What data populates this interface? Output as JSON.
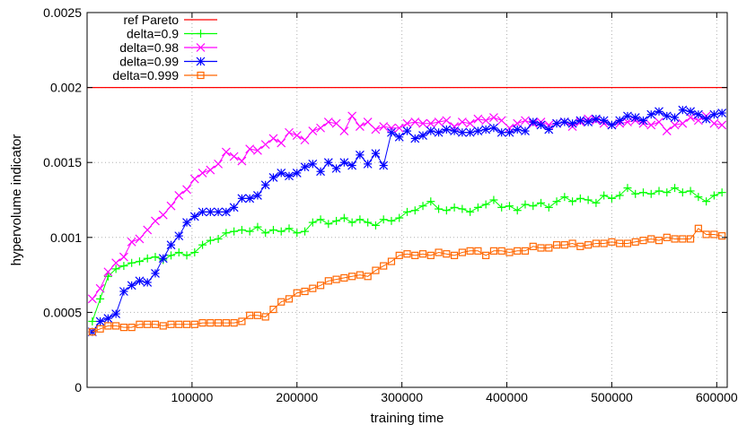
{
  "chart_data": {
    "type": "line",
    "xlabel": "training time",
    "ylabel": "hypervolume indicator",
    "xlim": [
      0,
      610000
    ],
    "ylim": [
      0,
      0.0025
    ],
    "grid": true,
    "legend_position": "top-left",
    "x_ticks": [
      100000,
      200000,
      300000,
      400000,
      500000,
      600000
    ],
    "x_tick_labels": [
      "100000",
      "200000",
      "300000",
      "400000",
      "500000",
      "600000"
    ],
    "y_ticks": [
      0,
      0.0005,
      0.001,
      0.0015,
      0.002,
      0.0025
    ],
    "y_tick_labels": [
      "0",
      "0.0005",
      "0.001",
      "0.0015",
      "0.002",
      "0.0025"
    ],
    "x": [
      5000,
      12500,
      20000,
      27500,
      35000,
      42500,
      50000,
      57500,
      65000,
      72500,
      80000,
      87500,
      95000,
      102500,
      110000,
      117500,
      125000,
      132500,
      140000,
      147500,
      155000,
      162500,
      170000,
      177500,
      185000,
      192500,
      200000,
      207500,
      215000,
      222500,
      230000,
      237500,
      245000,
      252500,
      260000,
      267500,
      275000,
      282500,
      290000,
      297500,
      305000,
      312500,
      320000,
      327500,
      335000,
      342500,
      350000,
      357500,
      365000,
      372500,
      380000,
      387500,
      395000,
      402500,
      410000,
      417500,
      425000,
      432500,
      440000,
      447500,
      455000,
      462500,
      470000,
      477500,
      485000,
      492500,
      500000,
      507500,
      515000,
      522500,
      530000,
      537500,
      545000,
      552500,
      560000,
      567500,
      575000,
      582500,
      590000,
      597500,
      605000
    ],
    "reference": {
      "name": "ref Pareto",
      "value": 0.002,
      "color": "#ff0000"
    },
    "series": [
      {
        "name": "delta=0.9",
        "color": "#00ff00",
        "marker": "plus",
        "values": [
          0.00044,
          0.00059,
          0.00074,
          0.00079,
          0.00081,
          0.00083,
          0.00084,
          0.00086,
          0.00087,
          0.00085,
          0.00088,
          0.0009,
          0.00088,
          0.0009,
          0.00095,
          0.00098,
          0.00099,
          0.00103,
          0.00104,
          0.00105,
          0.00104,
          0.00107,
          0.00103,
          0.00105,
          0.00104,
          0.00106,
          0.00103,
          0.00104,
          0.0011,
          0.00112,
          0.00109,
          0.00111,
          0.00113,
          0.0011,
          0.00112,
          0.0011,
          0.00108,
          0.00112,
          0.00111,
          0.00113,
          0.00117,
          0.00118,
          0.00121,
          0.00124,
          0.00119,
          0.00118,
          0.0012,
          0.00119,
          0.00117,
          0.0012,
          0.00122,
          0.00125,
          0.0012,
          0.00121,
          0.00118,
          0.00122,
          0.00121,
          0.00123,
          0.0012,
          0.00124,
          0.00127,
          0.00124,
          0.00126,
          0.00125,
          0.00123,
          0.00128,
          0.00126,
          0.00128,
          0.00133,
          0.00129,
          0.0013,
          0.00129,
          0.00131,
          0.0013,
          0.00133,
          0.0013,
          0.00131,
          0.00127,
          0.00124,
          0.00128,
          0.0013
        ]
      },
      {
        "name": "delta=0.98",
        "color": "#ff00ff",
        "marker": "cross",
        "values": [
          0.00059,
          0.00066,
          0.00077,
          0.00083,
          0.00087,
          0.00097,
          0.00099,
          0.00105,
          0.00111,
          0.00115,
          0.00121,
          0.00128,
          0.00132,
          0.00139,
          0.00143,
          0.00145,
          0.00149,
          0.00157,
          0.00154,
          0.00151,
          0.00159,
          0.00158,
          0.00162,
          0.00166,
          0.00163,
          0.0017,
          0.00168,
          0.00165,
          0.00171,
          0.00173,
          0.00177,
          0.00176,
          0.00171,
          0.00181,
          0.00174,
          0.00177,
          0.00172,
          0.00174,
          0.00173,
          0.00173,
          0.00176,
          0.00177,
          0.00176,
          0.00176,
          0.00177,
          0.00178,
          0.00174,
          0.00177,
          0.00176,
          0.00179,
          0.00178,
          0.0018,
          0.00178,
          0.00173,
          0.00176,
          0.00178,
          0.00176,
          0.00177,
          0.00175,
          0.00176,
          0.00177,
          0.00174,
          0.00177,
          0.00179,
          0.00178,
          0.00176,
          0.00175,
          0.00176,
          0.00177,
          0.00178,
          0.00176,
          0.00175,
          0.00177,
          0.00171,
          0.00175,
          0.00176,
          0.0018,
          0.00178,
          0.00181,
          0.00176,
          0.00175
        ]
      },
      {
        "name": "delta=0.99",
        "color": "#0000ff",
        "marker": "star",
        "values": [
          0.00037,
          0.00044,
          0.00046,
          0.00049,
          0.00064,
          0.00068,
          0.00071,
          0.0007,
          0.00076,
          0.00086,
          0.00095,
          0.00101,
          0.0011,
          0.00114,
          0.00117,
          0.00117,
          0.00117,
          0.00117,
          0.0012,
          0.00126,
          0.00126,
          0.00128,
          0.00135,
          0.0014,
          0.00143,
          0.00141,
          0.00143,
          0.00147,
          0.00149,
          0.00144,
          0.0015,
          0.00146,
          0.0015,
          0.00148,
          0.00155,
          0.00149,
          0.00156,
          0.00148,
          0.0017,
          0.00167,
          0.00171,
          0.00166,
          0.00168,
          0.00171,
          0.0017,
          0.00172,
          0.00171,
          0.0017,
          0.0017,
          0.00171,
          0.00172,
          0.00173,
          0.0017,
          0.0017,
          0.00172,
          0.00171,
          0.00177,
          0.00175,
          0.00172,
          0.00176,
          0.00177,
          0.00176,
          0.00178,
          0.00177,
          0.00179,
          0.00178,
          0.00175,
          0.00178,
          0.00181,
          0.0018,
          0.00178,
          0.00182,
          0.00184,
          0.00181,
          0.0018,
          0.00185,
          0.00184,
          0.00182,
          0.00179,
          0.00182,
          0.00183
        ]
      },
      {
        "name": "delta=0.999",
        "color": "#ff6600",
        "marker": "square",
        "values": [
          0.00037,
          0.00039,
          0.00041,
          0.00041,
          0.0004,
          0.0004,
          0.00042,
          0.00042,
          0.00042,
          0.00041,
          0.00042,
          0.00042,
          0.00042,
          0.00042,
          0.00043,
          0.00043,
          0.00043,
          0.00043,
          0.00043,
          0.00044,
          0.00048,
          0.00048,
          0.00047,
          0.00052,
          0.00057,
          0.00059,
          0.00063,
          0.00064,
          0.00066,
          0.00068,
          0.00071,
          0.00072,
          0.00073,
          0.00074,
          0.00075,
          0.00074,
          0.00078,
          0.00081,
          0.00084,
          0.00088,
          0.00089,
          0.00088,
          0.00089,
          0.00088,
          0.0009,
          0.00089,
          0.00088,
          0.0009,
          0.00091,
          0.00091,
          0.00088,
          0.00091,
          0.00091,
          0.0009,
          0.00091,
          0.00091,
          0.00094,
          0.00093,
          0.00093,
          0.00095,
          0.00095,
          0.00096,
          0.00094,
          0.00095,
          0.00096,
          0.00096,
          0.00097,
          0.00096,
          0.00096,
          0.00097,
          0.00098,
          0.00099,
          0.00098,
          0.001,
          0.00099,
          0.00099,
          0.00099,
          0.00106,
          0.00102,
          0.00102,
          0.00101
        ]
      }
    ]
  }
}
